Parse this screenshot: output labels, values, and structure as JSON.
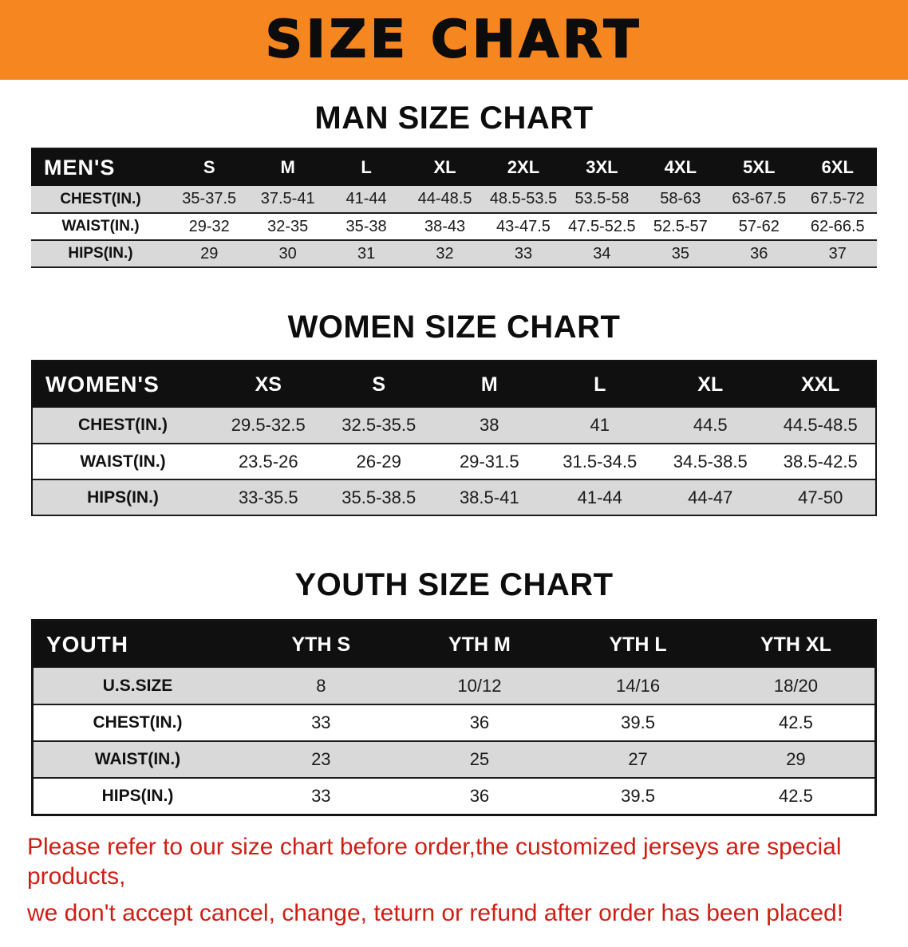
{
  "banner": {
    "title": "SIZE CHART",
    "background_color": "#f6861f"
  },
  "sections": {
    "men": {
      "heading": "MAN SIZE CHART",
      "table": {
        "header": [
          "MEN'S",
          "S",
          "M",
          "L",
          "XL",
          "2XL",
          "3XL",
          "4XL",
          "5XL",
          "6XL"
        ],
        "rows": [
          {
            "label": "CHEST(IN.)",
            "values": [
              "35-37.5",
              "37.5-41",
              "41-44",
              "44-48.5",
              "48.5-53.5",
              "53.5-58",
              "58-63",
              "63-67.5",
              "67.5-72"
            ]
          },
          {
            "label": "WAIST(IN.)",
            "values": [
              "29-32",
              "32-35",
              "35-38",
              "38-43",
              "43-47.5",
              "47.5-52.5",
              "52.5-57",
              "57-62",
              "62-66.5"
            ]
          },
          {
            "label": "HIPS(IN.)",
            "values": [
              "29",
              "30",
              "31",
              "32",
              "33",
              "34",
              "35",
              "36",
              "37"
            ]
          }
        ]
      }
    },
    "women": {
      "heading": "WOMEN SIZE CHART",
      "table": {
        "header": [
          "WOMEN'S",
          "XS",
          "S",
          "M",
          "L",
          "XL",
          "XXL"
        ],
        "rows": [
          {
            "label": "CHEST(IN.)",
            "values": [
              "29.5-32.5",
              "32.5-35.5",
              "38",
              "41",
              "44.5",
              "44.5-48.5"
            ]
          },
          {
            "label": "WAIST(IN.)",
            "values": [
              "23.5-26",
              "26-29",
              "29-31.5",
              "31.5-34.5",
              "34.5-38.5",
              "38.5-42.5"
            ]
          },
          {
            "label": "HIPS(IN.)",
            "values": [
              "33-35.5",
              "35.5-38.5",
              "38.5-41",
              "41-44",
              "44-47",
              "47-50"
            ]
          }
        ]
      }
    },
    "youth": {
      "heading": "YOUTH SIZE CHART",
      "table": {
        "header": [
          "YOUTH",
          "YTH S",
          "YTH M",
          "YTH L",
          "YTH XL"
        ],
        "rows": [
          {
            "label": "U.S.SIZE",
            "values": [
              "8",
              "10/12",
              "14/16",
              "18/20"
            ]
          },
          {
            "label": "CHEST(IN.)",
            "values": [
              "33",
              "36",
              "39.5",
              "42.5"
            ]
          },
          {
            "label": "WAIST(IN.)",
            "values": [
              "23",
              "25",
              "27",
              "29"
            ]
          },
          {
            "label": "HIPS(IN.)",
            "values": [
              "33",
              "36",
              "39.5",
              "42.5"
            ]
          }
        ]
      }
    }
  },
  "disclaimer": {
    "color": "#cf1e14",
    "line1": "Please refer to our size chart before order,the customized jerseys are special products,",
    "line2": "we don't accept cancel, change, teturn or refund after order has been placed!"
  }
}
